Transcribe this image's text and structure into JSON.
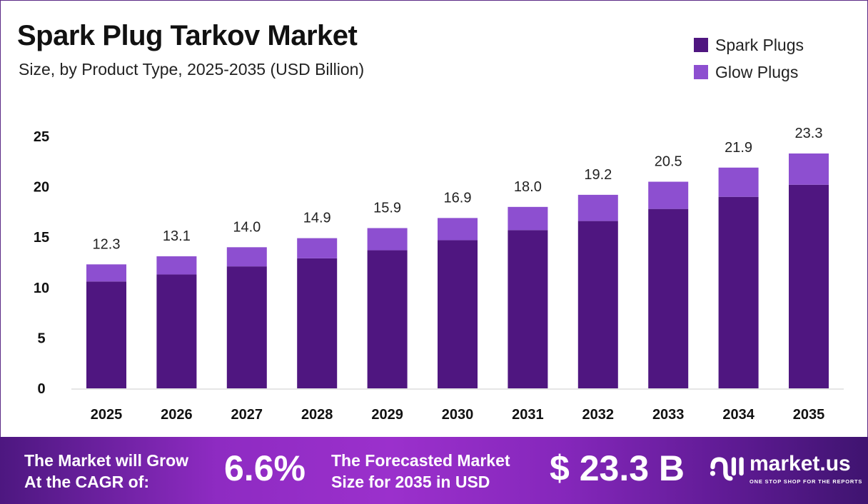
{
  "chart_data": {
    "type": "bar",
    "stacked": true,
    "title": "Spark Plug Tarkov Market",
    "subtitle": "Size, by Product Type, 2025-2035 (USD Billion)",
    "categories": [
      "2025",
      "2026",
      "2027",
      "2028",
      "2029",
      "2030",
      "2031",
      "2032",
      "2033",
      "2034",
      "2035"
    ],
    "series": [
      {
        "name": "Spark Plugs",
        "color": "#4f1680",
        "values": [
          10.6,
          11.3,
          12.1,
          12.9,
          13.7,
          14.7,
          15.7,
          16.6,
          17.8,
          19.0,
          20.2
        ]
      },
      {
        "name": "Glow Plugs",
        "color": "#8d4fd0",
        "values": [
          1.7,
          1.8,
          1.9,
          2.0,
          2.2,
          2.2,
          2.3,
          2.6,
          2.7,
          2.9,
          3.1
        ]
      }
    ],
    "totals": [
      "12.3",
      "13.1",
      "14.0",
      "14.9",
      "15.9",
      "16.9",
      "18.0",
      "19.2",
      "20.5",
      "21.9",
      "23.3"
    ],
    "yticks": [
      "0",
      "5",
      "10",
      "15",
      "20",
      "25"
    ],
    "ylim": [
      0,
      25
    ],
    "legend": "top-right",
    "grid": false
  },
  "footer": {
    "cagr_label_1": "The Market will Grow",
    "cagr_label_2": "At the CAGR of:",
    "cagr": "6.6%",
    "forecast_label_1": "The Forecasted Market",
    "forecast_label_2": "Size for 2035 in USD",
    "forecast": "$ 23.3 B",
    "logo": "market.us",
    "tagline": "ONE STOP SHOP FOR THE REPORTS"
  }
}
